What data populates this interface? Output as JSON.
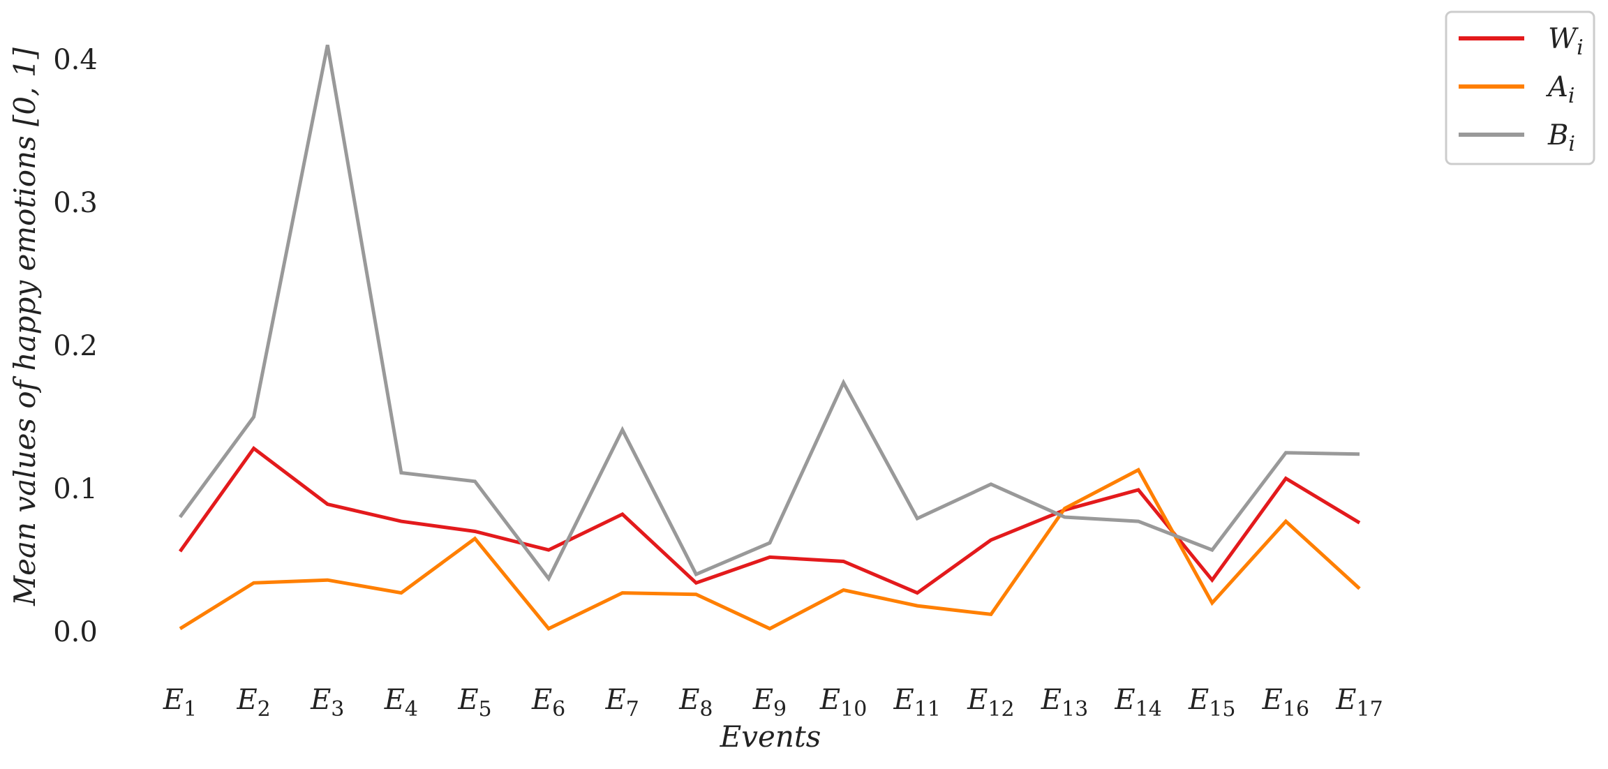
{
  "chart_data": {
    "type": "line",
    "xlabel": "Events",
    "ylabel": "Mean values of happy emotions [0, 1]",
    "categories": [
      {
        "base": "E",
        "sub": "1"
      },
      {
        "base": "E",
        "sub": "2"
      },
      {
        "base": "E",
        "sub": "3"
      },
      {
        "base": "E",
        "sub": "4"
      },
      {
        "base": "E",
        "sub": "5"
      },
      {
        "base": "E",
        "sub": "6"
      },
      {
        "base": "E",
        "sub": "7"
      },
      {
        "base": "E",
        "sub": "8"
      },
      {
        "base": "E",
        "sub": "9"
      },
      {
        "base": "E",
        "sub": "10"
      },
      {
        "base": "E",
        "sub": "11"
      },
      {
        "base": "E",
        "sub": "12"
      },
      {
        "base": "E",
        "sub": "13"
      },
      {
        "base": "E",
        "sub": "14"
      },
      {
        "base": "E",
        "sub": "15"
      },
      {
        "base": "E",
        "sub": "16"
      },
      {
        "base": "E",
        "sub": "17"
      }
    ],
    "yticks": [
      "0.0",
      "0.1",
      "0.2",
      "0.3",
      "0.4"
    ],
    "ylim": [
      -0.03,
      0.41
    ],
    "grid": false,
    "legend_position": "outside-top-right",
    "series": [
      {
        "name": "W",
        "name_sub": "i",
        "color": "#e31a1c",
        "values": [
          0.056,
          0.128,
          0.089,
          0.077,
          0.07,
          0.057,
          0.082,
          0.034,
          0.052,
          0.049,
          0.027,
          0.064,
          0.085,
          0.099,
          0.036,
          0.107,
          0.076
        ]
      },
      {
        "name": "A",
        "name_sub": "i",
        "color": "#ff7f00",
        "values": [
          0.002,
          0.034,
          0.036,
          0.027,
          0.065,
          0.002,
          0.027,
          0.026,
          0.002,
          0.029,
          0.018,
          0.012,
          0.086,
          0.113,
          0.02,
          0.077,
          0.03
        ]
      },
      {
        "name": "B",
        "name_sub": "i",
        "color": "#999999",
        "values": [
          0.08,
          0.15,
          0.41,
          0.111,
          0.105,
          0.037,
          0.141,
          0.04,
          0.062,
          0.174,
          0.079,
          0.103,
          0.08,
          0.077,
          0.057,
          0.125,
          0.124
        ]
      }
    ]
  }
}
